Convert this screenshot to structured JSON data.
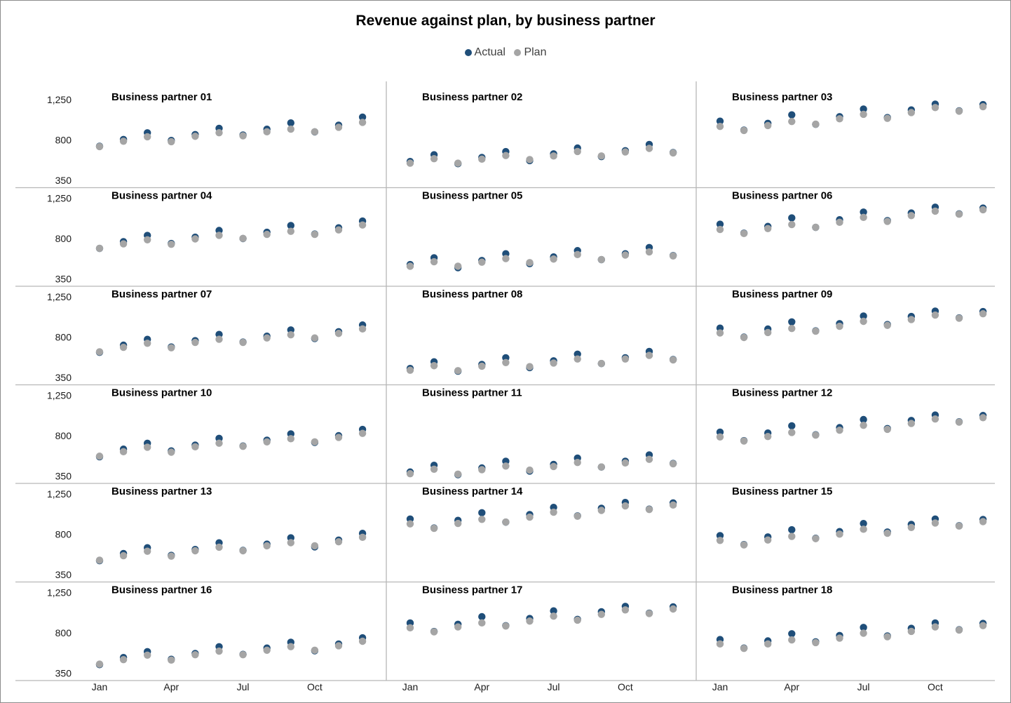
{
  "chart_data": {
    "type": "scatter",
    "title": "Revenue against plan, by business partner",
    "legend": {
      "placement": "top-center"
    },
    "series_names": [
      "Actual",
      "Plan"
    ],
    "colors": {
      "actual": "#1f4e79",
      "plan": "#a5a5a5",
      "grid": "#b7b7b7"
    },
    "x_tick_labels": [
      "Jan",
      "Apr",
      "Jul",
      "Oct"
    ],
    "months": 12,
    "y_tick_labels": [
      "1,250",
      "800",
      "350"
    ],
    "ylim": [
      350,
      1250
    ],
    "grid": false,
    "layout": {
      "columns": 3,
      "rows": 6
    },
    "panels": [
      {
        "name": "Business partner 01",
        "actual": [
          730,
          805,
          880,
          795,
          860,
          930,
          855,
          920,
          990,
          890,
          965,
          1055
        ],
        "plan": [
          730,
          790,
          840,
          785,
          845,
          885,
          850,
          895,
          925,
          895,
          945,
          1000
        ]
      },
      {
        "name": "Business partner 02",
        "actual": [
          560,
          635,
          535,
          605,
          670,
          570,
          645,
          710,
          615,
          680,
          750,
          660
        ],
        "plan": [
          545,
          595,
          545,
          590,
          630,
          585,
          625,
          675,
          625,
          670,
          710,
          660
        ]
      },
      {
        "name": "Business partner 03",
        "actual": [
          1010,
          910,
          985,
          1080,
          975,
          1060,
          1145,
          1050,
          1135,
          1200,
          1125,
          1195
        ],
        "plan": [
          955,
          910,
          965,
          1010,
          980,
          1040,
          1090,
          1045,
          1110,
          1165,
          1125,
          1175
        ]
      },
      {
        "name": "Business partner 04",
        "actual": [
          690,
          765,
          835,
          745,
          815,
          890,
          800,
          870,
          945,
          850,
          920,
          995
        ],
        "plan": [
          695,
          745,
          790,
          740,
          800,
          840,
          805,
          850,
          885,
          850,
          900,
          955
        ]
      },
      {
        "name": "Business partner 05",
        "actual": [
          510,
          585,
          475,
          555,
          630,
          520,
          595,
          665,
          565,
          630,
          700,
          610
        ],
        "plan": [
          495,
          545,
          495,
          540,
          580,
          535,
          575,
          625,
          570,
          620,
          655,
          610
        ]
      },
      {
        "name": "Business partner 06",
        "actual": [
          960,
          860,
          935,
          1030,
          925,
          1010,
          1095,
          1000,
          1085,
          1150,
          1075,
          1140
        ],
        "plan": [
          905,
          860,
          915,
          960,
          930,
          985,
          1040,
          995,
          1060,
          1110,
          1075,
          1125
        ]
      },
      {
        "name": "Business partner 07",
        "actual": [
          630,
          710,
          775,
          690,
          760,
          830,
          745,
          810,
          880,
          785,
          860,
          935
        ],
        "plan": [
          640,
          690,
          735,
          685,
          745,
          780,
          745,
          795,
          830,
          795,
          845,
          895
        ]
      },
      {
        "name": "Business partner 08",
        "actual": [
          450,
          525,
          420,
          495,
          570,
          460,
          535,
          610,
          505,
          570,
          640,
          550
        ],
        "plan": [
          435,
          485,
          430,
          480,
          520,
          475,
          515,
          560,
          510,
          560,
          600,
          550
        ]
      },
      {
        "name": "Business partner 09",
        "actual": [
          900,
          800,
          890,
          970,
          870,
          950,
          1035,
          940,
          1030,
          1090,
          1015,
          1085
        ],
        "plan": [
          850,
          800,
          855,
          900,
          870,
          925,
          980,
          935,
          1000,
          1050,
          1015,
          1065
        ]
      },
      {
        "name": "Business partner 10",
        "actual": [
          565,
          650,
          715,
          630,
          695,
          770,
          685,
          750,
          820,
          725,
          800,
          870
        ],
        "plan": [
          575,
          625,
          675,
          620,
          680,
          720,
          685,
          735,
          770,
          735,
          785,
          830
        ]
      },
      {
        "name": "Business partner 11",
        "actual": [
          395,
          470,
          365,
          440,
          515,
          405,
          480,
          550,
          450,
          515,
          585,
          490
        ],
        "plan": [
          380,
          430,
          375,
          425,
          465,
          420,
          460,
          505,
          455,
          500,
          540,
          490
        ]
      },
      {
        "name": "Business partner 12",
        "actual": [
          840,
          745,
          830,
          910,
          810,
          890,
          980,
          880,
          970,
          1030,
          955,
          1025
        ],
        "plan": [
          790,
          745,
          795,
          840,
          810,
          865,
          920,
          875,
          940,
          990,
          955,
          1005
        ]
      },
      {
        "name": "Business partner 13",
        "actual": [
          505,
          585,
          650,
          565,
          630,
          705,
          620,
          690,
          760,
          660,
          735,
          810
        ],
        "plan": [
          515,
          565,
          615,
          560,
          620,
          660,
          620,
          675,
          710,
          675,
          720,
          770
        ]
      },
      {
        "name": "Business partner 14",
        "actual": [
          970,
          870,
          955,
          1040,
          935,
          1020,
          1100,
          1005,
          1090,
          1155,
          1080,
          1150
        ],
        "plan": [
          920,
          870,
          925,
          970,
          940,
          995,
          1050,
          1005,
          1070,
          1120,
          1080,
          1130
        ]
      },
      {
        "name": "Business partner 15",
        "actual": [
          785,
          685,
          770,
          850,
          755,
          830,
          920,
          825,
          910,
          970,
          895,
          965
        ],
        "plan": [
          735,
          685,
          740,
          780,
          755,
          805,
          860,
          815,
          880,
          930,
          895,
          945
        ]
      },
      {
        "name": "Business partner 16",
        "actual": [
          445,
          525,
          590,
          505,
          570,
          645,
          560,
          630,
          695,
          600,
          675,
          745
        ],
        "plan": [
          455,
          505,
          555,
          500,
          560,
          600,
          560,
          610,
          650,
          610,
          660,
          710
        ]
      },
      {
        "name": "Business partner 17",
        "actual": [
          910,
          815,
          895,
          980,
          880,
          960,
          1045,
          950,
          1035,
          1095,
          1020,
          1090
        ],
        "plan": [
          860,
          815,
          870,
          915,
          880,
          935,
          990,
          945,
          1010,
          1060,
          1020,
          1070
        ]
      },
      {
        "name": "Business partner 18",
        "actual": [
          725,
          630,
          710,
          790,
          700,
          770,
          860,
          765,
          850,
          910,
          835,
          905
        ],
        "plan": [
          680,
          630,
          680,
          725,
          695,
          745,
          800,
          760,
          820,
          870,
          835,
          885
        ]
      }
    ]
  }
}
